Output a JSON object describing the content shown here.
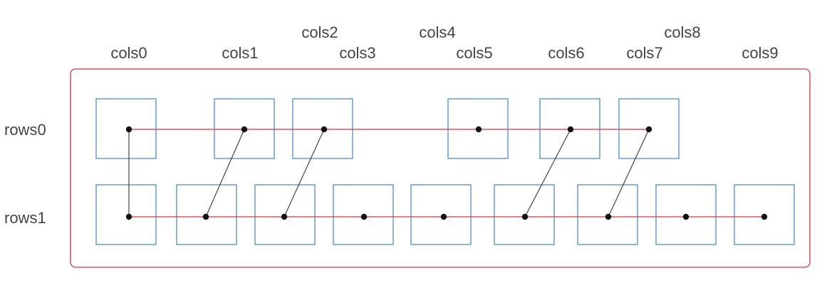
{
  "column_labels": [
    "cols0",
    "cols1",
    "cols2",
    "cols3",
    "cols4",
    "cols5",
    "cols6",
    "cols7",
    "cols8",
    "cols9"
  ],
  "row_labels": [
    "rows0",
    "rows1"
  ],
  "rows": [
    {
      "label": "rows0",
      "nodes": [
        "cols0",
        "cols1",
        "cols2",
        "cols5",
        "cols6",
        "cols7"
      ]
    },
    {
      "label": "rows1",
      "nodes": [
        "cols0",
        "cols1",
        "cols2",
        "cols3",
        "cols4",
        "cols6",
        "cols7",
        "cols8",
        "cols9"
      ]
    }
  ],
  "vertical_links": [
    {
      "from": "rows0:cols0",
      "to": "rows1:cols0"
    },
    {
      "from": "rows0:cols1",
      "to": "rows1:cols1"
    },
    {
      "from": "rows0:cols2",
      "to": "rows1:cols2"
    },
    {
      "from": "rows0:cols6",
      "to": "rows1:cols6"
    },
    {
      "from": "rows0:cols7",
      "to": "rows1:cols7"
    }
  ],
  "colors": {
    "frame": "#e0303a",
    "row_line": "#e0303a",
    "node_box": "#4a8cd8",
    "link": "#444444",
    "dot": "#111111",
    "text": "#444444"
  }
}
